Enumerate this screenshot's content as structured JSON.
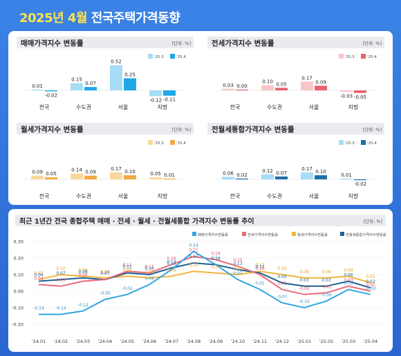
{
  "header": {
    "date": "2025년 4월",
    "title": "전국주택가격동향"
  },
  "colors": {
    "sale": [
      "#a6dcf6",
      "#1fa8e6"
    ],
    "jeonse": [
      "#fac5c7",
      "#e6636f"
    ],
    "monthly": [
      "#f9d79e",
      "#f1aa40"
    ],
    "combined": [
      "#a6dcf6",
      "#1f6fa8"
    ],
    "line_sale": "#2fa7e4",
    "line_jeonse": "#e96b77",
    "line_monthly": "#f1b53b",
    "line_combined": "#1e5f93"
  },
  "chart_data": [
    {
      "type": "bar",
      "title": "매매가격지수 변동률",
      "unit": "[단위: %]",
      "categories": [
        "전국",
        "수도권",
        "서울",
        "지방"
      ],
      "series": [
        {
          "name": "'25.3",
          "values": [
            0.01,
            0.15,
            0.52,
            -0.12
          ]
        },
        {
          "name": "'25.4",
          "values": [
            -0.02,
            0.07,
            0.25,
            -0.11
          ]
        }
      ]
    },
    {
      "type": "bar",
      "title": "전세가격지수 변동률",
      "unit": "[단위: %]",
      "categories": [
        "전국",
        "수도권",
        "서울",
        "지방"
      ],
      "series": [
        {
          "name": "'25.3",
          "values": [
            0.03,
            0.1,
            0.17,
            -0.03
          ]
        },
        {
          "name": "'25.4",
          "values": [
            0.0,
            0.05,
            0.09,
            -0.05
          ]
        }
      ]
    },
    {
      "type": "bar",
      "title": "월세가격지수 변동률",
      "unit": "[단위: %]",
      "categories": [
        "전국",
        "수도권",
        "서울",
        "지방"
      ],
      "series": [
        {
          "name": "'25.3",
          "values": [
            0.09,
            0.14,
            0.17,
            0.05
          ]
        },
        {
          "name": "'25.4",
          "values": [
            0.05,
            0.09,
            0.1,
            0.01
          ]
        }
      ]
    },
    {
      "type": "bar",
      "title": "전월세통합가격지수 변동률",
      "unit": "[단위: %]",
      "categories": [
        "전국",
        "수도권",
        "서울",
        "지방"
      ],
      "series": [
        {
          "name": "'25.3",
          "values": [
            0.06,
            0.12,
            0.17,
            0.01
          ]
        },
        {
          "name": "'25.4",
          "values": [
            0.02,
            0.07,
            0.1,
            -0.02
          ]
        }
      ]
    },
    {
      "type": "line",
      "title": "최근 1년간 전국 종합주택 매매 · 전세 · 월세 · 전월세통합 가격지수 변동률 추이",
      "unit": "[단위: %]",
      "x": [
        "'24.01",
        "'24.02",
        "'24.03",
        "'24.04",
        "'24.05",
        "'24.06",
        "'24.07",
        "'24.08",
        "'24.09",
        "'24.10",
        "'24.11",
        "'24.12",
        "'25.01",
        "'25.02",
        "'25.03",
        "'25.04"
      ],
      "ylim": [
        -0.2,
        0.3
      ],
      "yticks": [
        "0.30",
        "0.20",
        "0.10",
        "0.00",
        "-0.10",
        "-0.20"
      ],
      "series": [
        {
          "name": "매매가격지수변동률",
          "values": [
            -0.14,
            -0.14,
            -0.12,
            -0.05,
            -0.02,
            0.04,
            0.13,
            0.24,
            0.16,
            0.07,
            0.01,
            -0.07,
            -0.1,
            -0.06,
            0.01,
            -0.02
          ]
        },
        {
          "name": "전세가격지수변동률",
          "values": [
            0.04,
            0.03,
            0.06,
            0.07,
            0.12,
            0.11,
            0.16,
            0.21,
            0.19,
            0.15,
            0.1,
            0.01,
            -0.02,
            -0.01,
            0.03,
            0.0
          ]
        },
        {
          "name": "월세가격지수변동률",
          "values": [
            0.07,
            0.1,
            0.09,
            0.08,
            0.09,
            0.08,
            0.09,
            0.12,
            0.11,
            0.1,
            0.12,
            0.1,
            0.08,
            0.08,
            0.09,
            0.05
          ]
        },
        {
          "name": "전월세통합가격지수변동률",
          "values": [
            0.06,
            0.07,
            0.08,
            0.07,
            0.11,
            0.1,
            0.14,
            0.17,
            0.16,
            0.13,
            0.11,
            0.05,
            0.03,
            0.03,
            0.06,
            0.02
          ]
        }
      ]
    }
  ]
}
